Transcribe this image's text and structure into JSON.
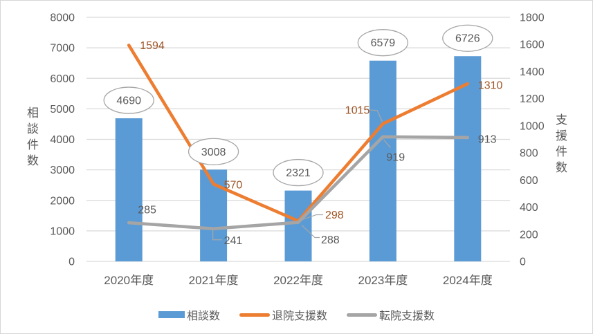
{
  "chart_data": {
    "type": "combo-bar-line",
    "title": "",
    "categories": [
      "2020年度",
      "2021年度",
      "2022年度",
      "2023年度",
      "2024年度"
    ],
    "series": [
      {
        "name": "相談数",
        "type": "bar",
        "axis": "left",
        "color": "#5B9BD5",
        "values": [
          4690,
          3008,
          2321,
          6579,
          6726
        ],
        "label_style": "oval-callout",
        "label_color": "#595959"
      },
      {
        "name": "退院支援数",
        "type": "line",
        "axis": "right",
        "color": "#ED7D31",
        "values": [
          1594,
          570,
          298,
          1015,
          1310
        ],
        "label_color": "#9E5424"
      },
      {
        "name": "転院支援数",
        "type": "line",
        "axis": "right",
        "color": "#A5A5A5",
        "values": [
          285,
          241,
          288,
          919,
          913
        ],
        "label_color": "#595959"
      }
    ],
    "axes": {
      "left": {
        "title": "相談件数",
        "min": 0,
        "max": 8000,
        "step": 1000
      },
      "right": {
        "title": "支援件数",
        "min": 0,
        "max": 1800,
        "step": 200
      }
    },
    "gridlines": true,
    "legend_position": "bottom"
  },
  "colors": {
    "background": "#FFFFFF",
    "border": "#D6D6D6",
    "gridline": "#D9D9D9",
    "tick_label": "#595959",
    "axis_title": "#595959",
    "oval_stroke": "#A6A6A6",
    "oval_fill": "#FFFFFF",
    "leader_line": "#A6A6A6",
    "legend_text": "#595959"
  }
}
